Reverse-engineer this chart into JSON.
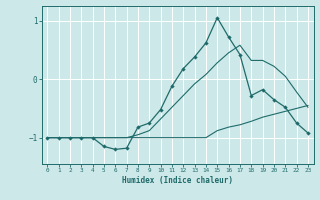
{
  "xlabel": "Humidex (Indice chaleur)",
  "x_values": [
    0,
    1,
    2,
    3,
    4,
    5,
    6,
    7,
    8,
    9,
    10,
    11,
    12,
    13,
    14,
    15,
    16,
    17,
    18,
    19,
    20,
    21,
    22,
    23
  ],
  "y_main": [
    -1,
    -1,
    -1,
    -1,
    -1,
    -1.15,
    -1.2,
    -1.18,
    -0.82,
    -0.75,
    -0.52,
    -0.12,
    0.18,
    0.38,
    0.62,
    1.05,
    0.72,
    0.42,
    -0.28,
    -0.18,
    -0.35,
    -0.48,
    -0.75,
    -0.92
  ],
  "y_upper": [
    -1,
    -1,
    -1,
    -1,
    -1,
    -1,
    -1,
    -1,
    -0.95,
    -0.88,
    -0.68,
    -0.48,
    -0.28,
    -0.08,
    0.08,
    0.28,
    0.45,
    0.58,
    0.32,
    0.32,
    0.22,
    0.05,
    -0.22,
    -0.48
  ],
  "y_lower": [
    -1,
    -1,
    -1,
    -1,
    -1,
    -1,
    -1,
    -1,
    -1,
    -1,
    -1,
    -1,
    -1,
    -1,
    -1,
    -0.88,
    -0.82,
    -0.78,
    -0.72,
    -0.65,
    -0.6,
    -0.55,
    -0.5,
    -0.45
  ],
  "bg_color": "#cde8e8",
  "line_color": "#1f6b6b",
  "grid_color": "#b0d8d8",
  "xlim": [
    -0.5,
    23.5
  ],
  "ylim": [
    -1.45,
    1.25
  ],
  "yticks": [
    -1,
    0,
    1
  ],
  "xticks": [
    0,
    1,
    2,
    3,
    4,
    5,
    6,
    7,
    8,
    9,
    10,
    11,
    12,
    13,
    14,
    15,
    16,
    17,
    18,
    19,
    20,
    21,
    22,
    23
  ]
}
